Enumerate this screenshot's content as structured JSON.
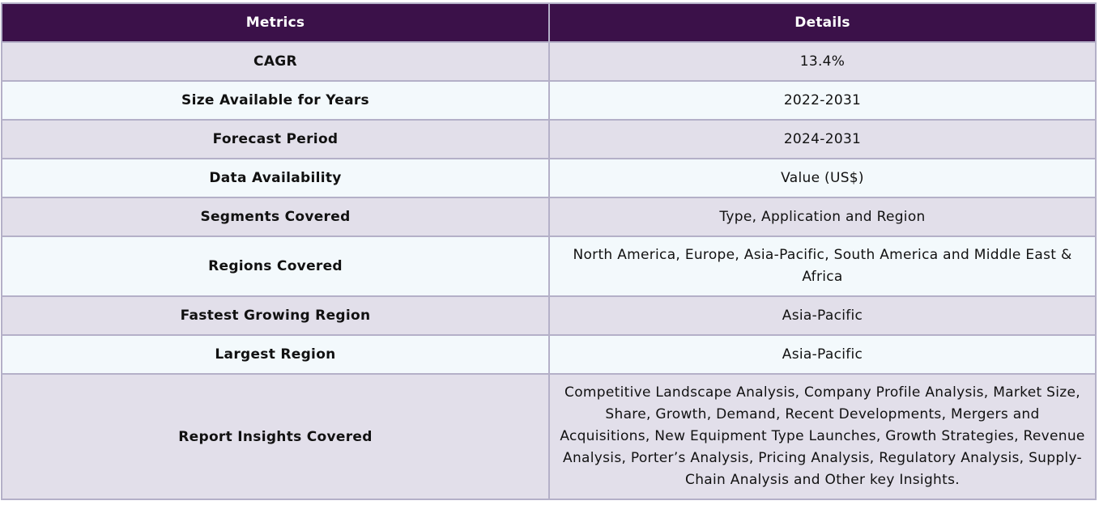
{
  "table": {
    "headers": {
      "metric": "Metrics",
      "details": "Details"
    },
    "rows": [
      {
        "metric": "CAGR",
        "details": "13.4%"
      },
      {
        "metric": "Size Available for Years",
        "details": "2022-2031"
      },
      {
        "metric": "Forecast Period",
        "details": "2024-2031"
      },
      {
        "metric": "Data Availability",
        "details": "Value (US$)"
      },
      {
        "metric": "Segments Covered",
        "details": "Type, Application and Region"
      },
      {
        "metric": "Regions Covered",
        "details": "North America, Europe, Asia-Pacific, South America and Middle East & Africa"
      },
      {
        "metric": "Fastest Growing Region",
        "details": "Asia-Pacific"
      },
      {
        "metric": "Largest Region",
        "details": "Asia-Pacific"
      },
      {
        "metric": "Report Insights Covered",
        "details": "Competitive Landscape Analysis, Company Profile Analysis, Market Size, Share, Growth, Demand, Recent Developments, Mergers and Acquisitions, New Equipment Type Launches, Growth Strategies, Revenue Analysis, Porter’s Analysis, Pricing Analysis, Regulatory Analysis, Supply-Chain Analysis and Other key Insights."
      }
    ]
  },
  "colors": {
    "header_bg": "#3b1149",
    "header_text": "#ffffff",
    "row_odd_bg": "#e2dfea",
    "row_even_bg": "#f3f9fc",
    "border": "#b4b0c8"
  }
}
